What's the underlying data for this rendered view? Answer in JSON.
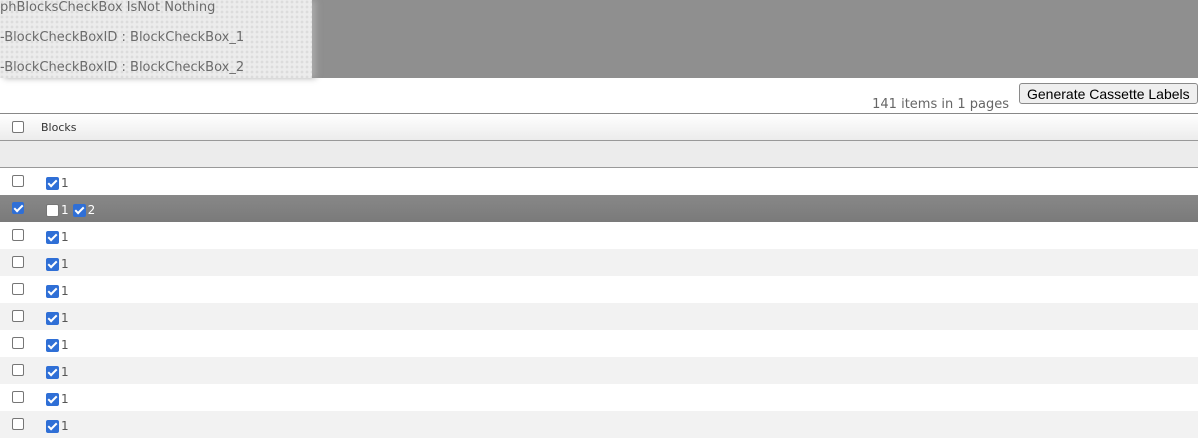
{
  "debug": [
    "phBlocksCheckBox IsNot Nothing",
    "-BlockCheckBoxID : BlockCheckBox_1",
    "-BlockCheckBoxID : BlockCheckBox_2"
  ],
  "toolbar": {
    "generate_label": "Generate Cassette Labels",
    "count_text": "141 items in 1 pages"
  },
  "grid": {
    "header": "Blocks",
    "rows": [
      {
        "selected": false,
        "blocks": [
          {
            "label": "1",
            "checked": true
          }
        ]
      },
      {
        "selected": true,
        "blocks": [
          {
            "label": "1",
            "checked": false
          },
          {
            "label": "2",
            "checked": true
          }
        ]
      },
      {
        "selected": false,
        "blocks": [
          {
            "label": "1",
            "checked": true
          }
        ]
      },
      {
        "selected": false,
        "blocks": [
          {
            "label": "1",
            "checked": true
          }
        ]
      },
      {
        "selected": false,
        "blocks": [
          {
            "label": "1",
            "checked": true
          }
        ]
      },
      {
        "selected": false,
        "blocks": [
          {
            "label": "1",
            "checked": true
          }
        ]
      },
      {
        "selected": false,
        "blocks": [
          {
            "label": "1",
            "checked": true
          }
        ]
      },
      {
        "selected": false,
        "blocks": [
          {
            "label": "1",
            "checked": true
          }
        ]
      },
      {
        "selected": false,
        "blocks": [
          {
            "label": "1",
            "checked": true
          }
        ]
      },
      {
        "selected": false,
        "blocks": [
          {
            "label": "1",
            "checked": true
          }
        ]
      }
    ]
  }
}
